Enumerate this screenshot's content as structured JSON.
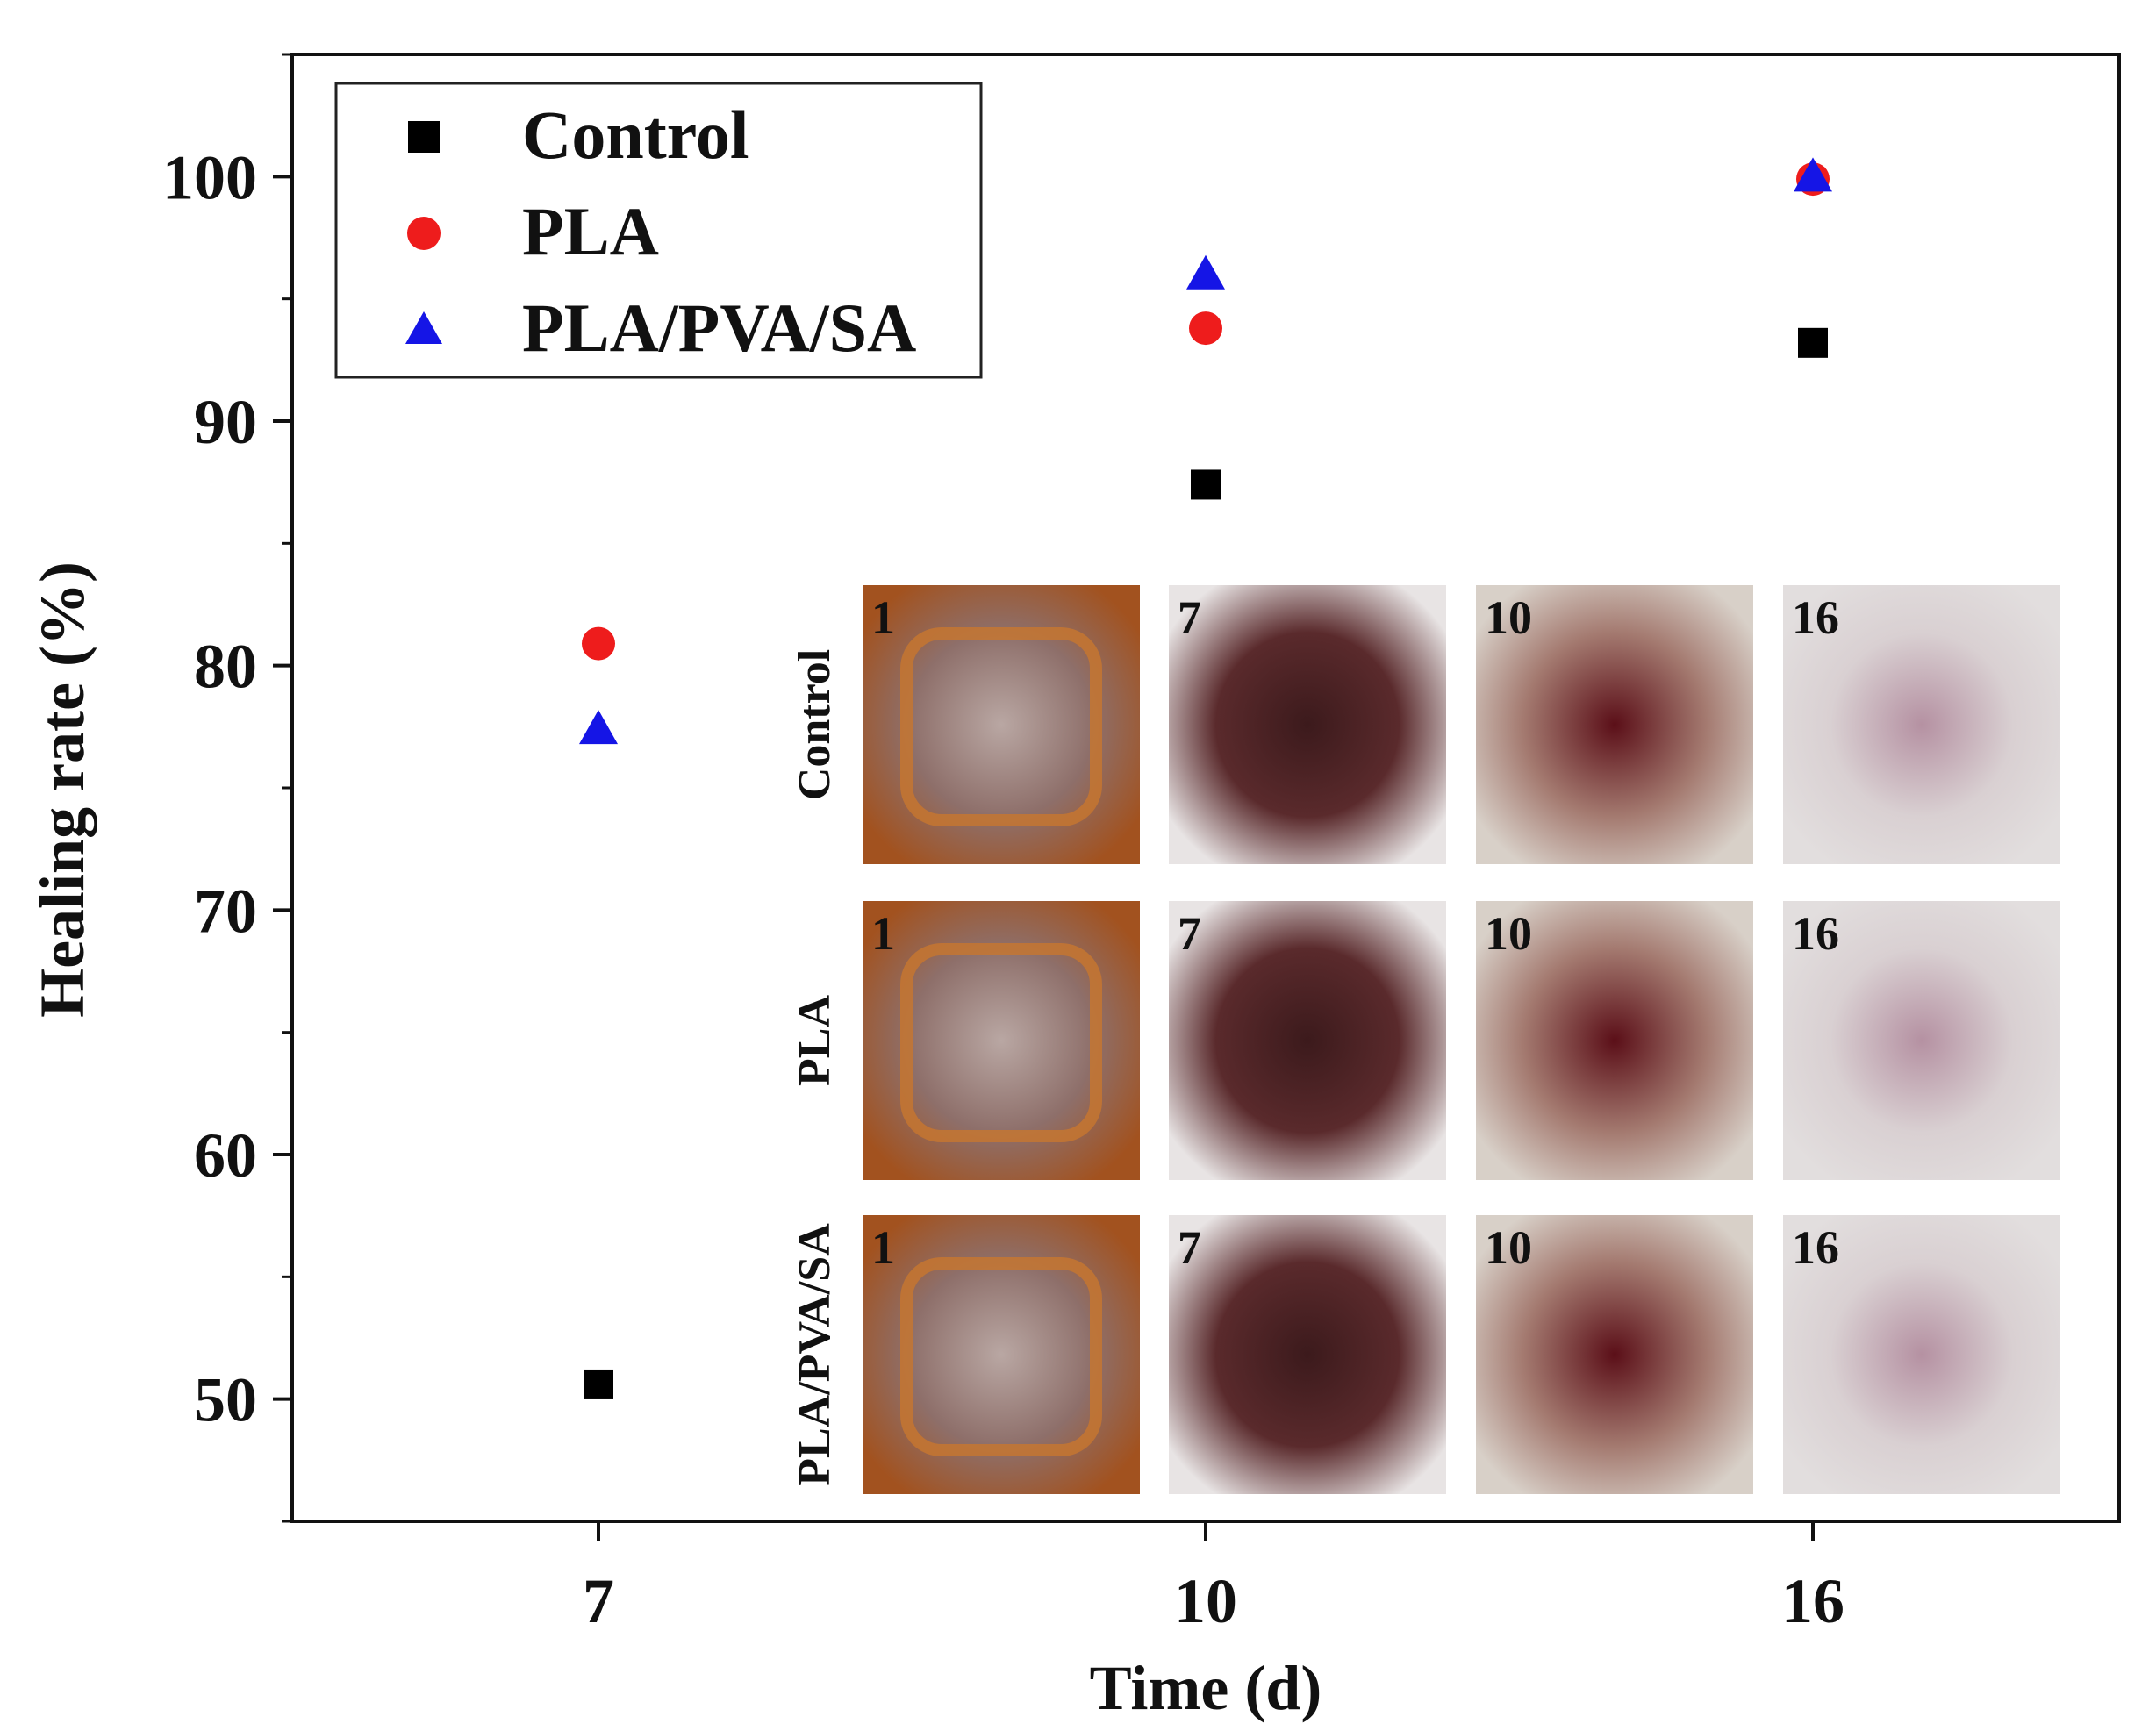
{
  "chart_data": {
    "type": "scatter",
    "xlabel": "Time (d)",
    "ylabel": "Healing rate (%)",
    "categories": [
      "7",
      "10",
      "16"
    ],
    "ylim": [
      45,
      105
    ],
    "yticks": [
      50,
      60,
      70,
      80,
      90,
      100
    ],
    "series": [
      {
        "name": "Control",
        "marker": "square",
        "color": "#000000",
        "values": [
          50.6,
          87.4,
          93.2
        ]
      },
      {
        "name": "PLA",
        "marker": "circle",
        "color": "#ee1c1c",
        "values": [
          80.9,
          93.8,
          99.9
        ]
      },
      {
        "name": "PLA/PVA/SA",
        "marker": "triangle",
        "color": "#1515e6",
        "values": [
          77.4,
          96.0,
          100.0
        ]
      }
    ],
    "legend_position": "top-left"
  },
  "inset": {
    "row_labels": [
      "Control",
      "PLA",
      "PLA/PVA/SA"
    ],
    "day_labels": [
      "1",
      "7",
      "10",
      "16"
    ]
  }
}
